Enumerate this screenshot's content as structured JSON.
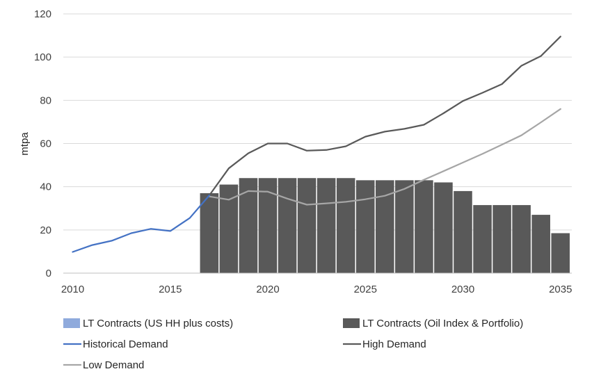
{
  "chart_data": {
    "type": "bar",
    "ylabel": "mtpa",
    "xlabel": "",
    "ylim": [
      0,
      120
    ],
    "xlim": [
      2010,
      2035
    ],
    "yticks": [
      0,
      20,
      40,
      60,
      80,
      100,
      120
    ],
    "xticks": [
      2010,
      2015,
      2020,
      2025,
      2030,
      2035
    ],
    "grid": true,
    "legend_position": "bottom",
    "series": [
      {
        "name": "LT Contracts (US HH plus costs)",
        "kind": "bar",
        "color": "#8faadc",
        "x": [
          2017,
          2018,
          2019,
          2020,
          2021,
          2022,
          2023,
          2024,
          2025,
          2026,
          2027,
          2028,
          2029,
          2030,
          2031,
          2032,
          2033,
          2034,
          2035
        ],
        "values": [
          0,
          0,
          0,
          0,
          0,
          0,
          0,
          0,
          0,
          0,
          0,
          0,
          0,
          0,
          0,
          0,
          0,
          0,
          0
        ]
      },
      {
        "name": "LT Contracts (Oil Index & Portfolio)",
        "kind": "bar",
        "color": "#595959",
        "x": [
          2017,
          2018,
          2019,
          2020,
          2021,
          2022,
          2023,
          2024,
          2025,
          2026,
          2027,
          2028,
          2029,
          2030,
          2031,
          2032,
          2033,
          2034,
          2035
        ],
        "values": [
          37,
          41,
          44,
          44,
          44,
          44,
          44,
          44,
          43,
          43,
          43,
          43,
          42,
          38,
          31.5,
          31.5,
          31.5,
          27,
          18.5
        ]
      },
      {
        "name": "Historical Demand",
        "kind": "line",
        "color": "#4472c4",
        "x": [
          2010,
          2011,
          2012,
          2013,
          2014,
          2015,
          2016,
          2017
        ],
        "values": [
          9.8,
          13,
          15,
          18.5,
          20.5,
          19.5,
          25.5,
          36
        ]
      },
      {
        "name": "High Demand",
        "kind": "line",
        "color": "#595959",
        "x": [
          2017,
          2018,
          2019,
          2020,
          2021,
          2022,
          2023,
          2024,
          2025,
          2026,
          2027,
          2028,
          2029,
          2030,
          2031,
          2032,
          2033,
          2034,
          2035
        ],
        "values": [
          36,
          48.5,
          55.5,
          60,
          60,
          56.7,
          57,
          58.7,
          63.2,
          65.5,
          66.8,
          68.7,
          74,
          79.7,
          83.5,
          87.5,
          96,
          100.5,
          109.5
        ]
      },
      {
        "name": "Low Demand",
        "kind": "line",
        "color": "#a6a6a6",
        "x": [
          2017,
          2018,
          2019,
          2020,
          2021,
          2022,
          2023,
          2024,
          2025,
          2026,
          2027,
          2028,
          2029,
          2030,
          2031,
          2032,
          2033,
          2034,
          2035
        ],
        "values": [
          35.5,
          34,
          38,
          37.7,
          34.5,
          31.7,
          32.3,
          33,
          34.2,
          35.8,
          39,
          43.2,
          47.2,
          51.2,
          55.2,
          59.5,
          63.8,
          69.8,
          76
        ]
      }
    ]
  }
}
